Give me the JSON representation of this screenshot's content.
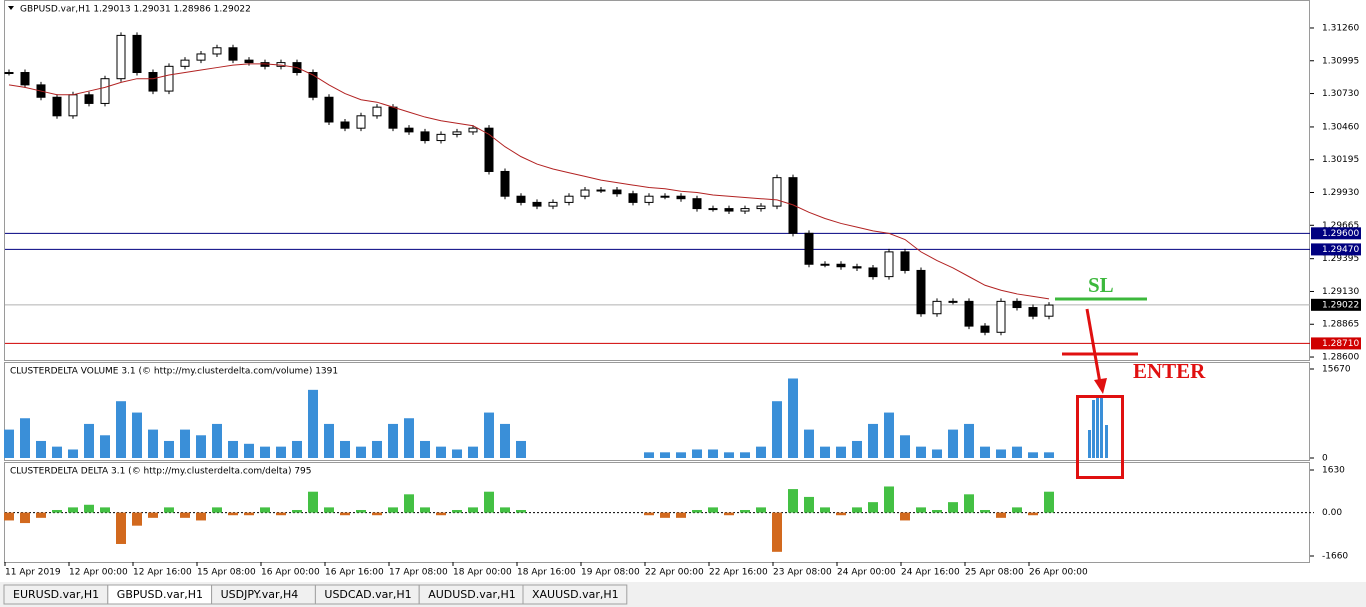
{
  "chart_data": [
    {
      "type": "candlestick",
      "title": "GBPUSD.var,H1  1.29013 1.29031 1.28986 1.29022",
      "categories": [
        "11 Apr 2019",
        null,
        null,
        null,
        "12 Apr 00:00",
        null,
        null,
        null,
        "12 Apr 16:00",
        null,
        null,
        null,
        "15 Apr 08:00",
        null,
        null,
        null,
        "16 Apr 00:00",
        null,
        null,
        null,
        "16 Apr 16:00",
        null,
        null,
        null,
        "17 Apr 08:00",
        null,
        null,
        null,
        "18 Apr 00:00",
        null,
        null,
        null,
        "18 Apr 16:00",
        null,
        null,
        null,
        "19 Apr 08:00",
        null,
        null,
        null,
        "22 Apr 00:00",
        null,
        null,
        null,
        "22 Apr 16:00",
        null,
        null,
        null,
        "23 Apr 08:00",
        null,
        null,
        null,
        "24 Apr 00:00",
        null,
        null,
        null,
        "24 Apr 16:00",
        null,
        null,
        null,
        "25 Apr 08:00",
        null,
        null,
        null,
        "26 Apr 00:00",
        null
      ],
      "series": [
        {
          "color": "#000000",
          "values": [
            1.309,
            1.308,
            1.307,
            1.3055,
            1.3072,
            1.3065,
            1.3085,
            1.312,
            1.309,
            1.3075,
            1.3095,
            1.31,
            1.3105,
            1.311,
            1.31,
            1.3098,
            1.3095,
            1.3098,
            1.309,
            1.307,
            1.305,
            1.3045,
            1.3055,
            1.3062,
            1.3045,
            1.3042,
            1.3035,
            1.304,
            1.3042,
            1.3045,
            1.301,
            1.299,
            1.2985,
            1.2982,
            1.2985,
            1.299,
            1.2995,
            1.2995,
            1.2992,
            1.2985,
            1.299,
            1.299,
            1.2988,
            1.298,
            1.298,
            1.2978,
            1.298,
            1.2982,
            1.3005,
            1.296,
            1.2935,
            1.2935,
            1.2933,
            1.2932,
            1.2925,
            1.2945,
            1.293,
            1.2895,
            1.2905,
            1.2905,
            1.2885,
            1.288,
            1.2905,
            1.29,
            1.2893,
            1.2902
          ]
        },
        {
          "color": "#b22222",
          "values": [
            1.308,
            1.3078,
            1.3075,
            1.3072,
            1.3072,
            1.3075,
            1.3078,
            1.3082,
            1.3085,
            1.3085,
            1.3088,
            1.309,
            1.3092,
            1.3094,
            1.3096,
            1.3097,
            1.3097,
            1.3096,
            1.3094,
            1.3088,
            1.308,
            1.3073,
            1.3068,
            1.3066,
            1.3062,
            1.3058,
            1.3054,
            1.3051,
            1.3049,
            1.3047,
            1.304,
            1.303,
            1.3022,
            1.3016,
            1.3012,
            1.3009,
            1.3006,
            1.3003,
            1.3001,
            1.2999,
            1.2997,
            1.2996,
            1.2994,
            1.2993,
            1.2991,
            1.299,
            1.2989,
            1.2988,
            1.2987,
            1.2983,
            1.2977,
            1.2972,
            1.2968,
            1.2965,
            1.2962,
            1.296,
            1.2955,
            1.2945,
            1.2938,
            1.2932,
            1.2925,
            1.2918,
            1.2914,
            1.2911,
            1.2909,
            1.2907
          ]
        }
      ],
      "ylim": [
        1.28576,
        1.3147
      ],
      "yticks": [
        {
          "value": 1.3126,
          "label": "1.31260"
        },
        {
          "value": 1.30995,
          "label": "1.30995"
        },
        {
          "value": 1.3073,
          "label": "1.30730"
        },
        {
          "value": 1.3046,
          "label": "1.30460"
        },
        {
          "value": 1.30195,
          "label": "1.30195"
        },
        {
          "value": 1.2993,
          "label": "1.29930"
        },
        {
          "value": 1.29665,
          "label": "1.29665"
        },
        {
          "value": 1.29395,
          "label": "1.29395"
        },
        {
          "value": 1.2913,
          "label": "1.29130"
        },
        {
          "value": 1.28865,
          "label": "1.28865"
        },
        {
          "value": 1.286,
          "label": "1.28600"
        }
      ],
      "price_lines": [
        {
          "value": 1.296,
          "label": "1.29600",
          "color": "#000080"
        },
        {
          "value": 1.2947,
          "label": "1.29470",
          "color": "#000080"
        },
        {
          "value": 1.29022,
          "label": "1.29022",
          "color": "#000000"
        },
        {
          "value": 1.2871,
          "label": "1.28710",
          "color": "#d00000"
        }
      ]
    },
    {
      "type": "bar",
      "title": "CLUSTERDELTA VOLUME 3.1 (© http://my.clusterdelta.com/volume) 1391",
      "color": "#3a8fd8",
      "values": [
        5000,
        7000,
        3000,
        2000,
        1500,
        6000,
        4000,
        10000,
        8000,
        5000,
        3000,
        5000,
        4000,
        6000,
        3000,
        2500,
        2000,
        2000,
        3000,
        12000,
        6000,
        3000,
        2000,
        3000,
        6000,
        7000,
        3000,
        2000,
        1500,
        2000,
        8000,
        6000,
        3000,
        0,
        0,
        0,
        0,
        0,
        0,
        0,
        1000,
        1000,
        1000,
        1500,
        1500,
        1000,
        1000,
        2000,
        10000,
        14000,
        5000,
        2000,
        2000,
        3000,
        6000,
        8000,
        4000,
        2000,
        1500,
        5000,
        6000,
        2000,
        1500,
        2000,
        1000,
        1000
      ],
      "ylim": [
        0,
        15670
      ],
      "yticks": [
        15670,
        0
      ]
    },
    {
      "type": "bar",
      "title": "CLUSTERDELTA DELTA 3.1 (© http://my.clusterdelta.com/delta) 795",
      "color": "#44c044",
      "negative_color": "#d2691e",
      "values": [
        -300,
        -400,
        -200,
        100,
        200,
        300,
        200,
        -1200,
        -500,
        -200,
        200,
        -200,
        -300,
        200,
        -100,
        -100,
        200,
        -100,
        100,
        800,
        200,
        -100,
        100,
        -100,
        200,
        700,
        200,
        -100,
        100,
        200,
        800,
        200,
        100,
        0,
        0,
        0,
        0,
        0,
        0,
        0,
        -100,
        -200,
        -200,
        100,
        200,
        -100,
        100,
        200,
        -1500,
        900,
        600,
        200,
        -100,
        200,
        400,
        1000,
        -300,
        200,
        100,
        400,
        700,
        100,
        -200,
        200,
        -100,
        800
      ],
      "ylim": [
        -1660,
        1630
      ],
      "yticks": [
        1630,
        {
          "value": 0,
          "label": "0.00"
        },
        -1660
      ]
    }
  ],
  "annotations": {
    "sl": "SL",
    "enter": "ENTER"
  },
  "tabs": [
    "EURUSD.var,H1",
    "GBPUSD.var,H1",
    "USDJPY.var,H4",
    "USDCAD.var,H1",
    "AUDUSD.var,H1",
    "XAUUSD.var,H1"
  ]
}
